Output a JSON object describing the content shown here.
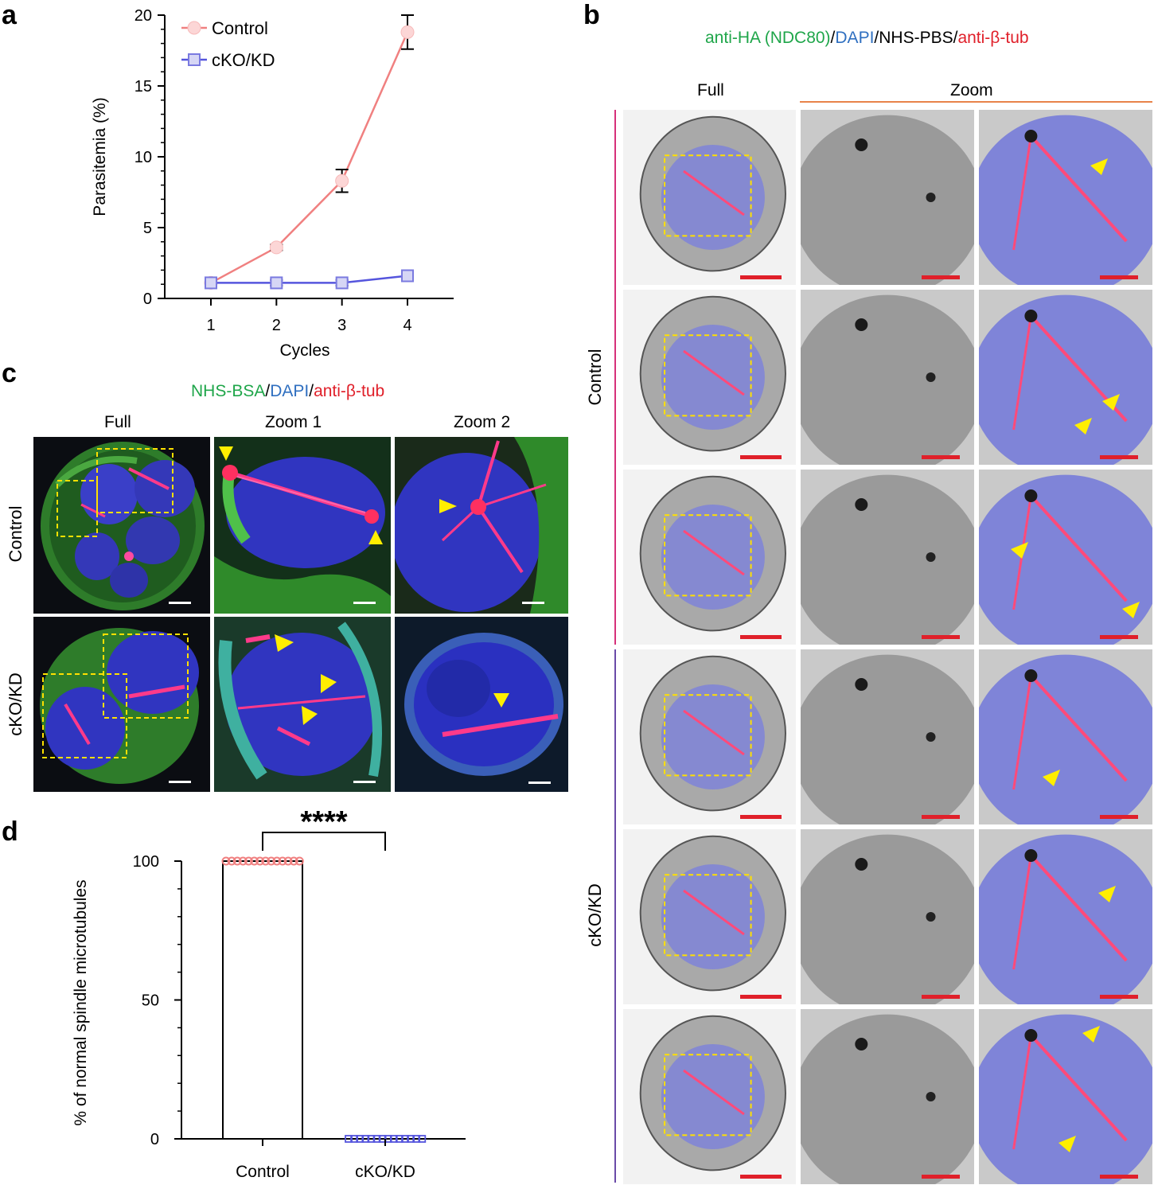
{
  "panels": {
    "a": {
      "letter": "a"
    },
    "b": {
      "letter": "b",
      "title_parts": [
        "anti-HA (NDC80)",
        "/",
        "DAPI",
        "/",
        "NHS-PBS",
        "/",
        "anti-β-tub"
      ],
      "col_full": "Full",
      "col_zoom": "Zoom",
      "row_control": "Control",
      "row_ckokd": "cKO/KD"
    },
    "c": {
      "letter": "c",
      "title_parts": [
        "NHS-BSA",
        "/",
        "DAPI",
        "/",
        "anti-β-tub"
      ],
      "col_full": "Full",
      "col_zoom1": "Zoom 1",
      "col_zoom2": "Zoom 2",
      "row_control": "Control",
      "row_ckokd": "cKO/KD"
    },
    "d": {
      "letter": "d",
      "significance": "****"
    }
  },
  "colors": {
    "control": "#f08080",
    "ckokd": "#5555dd",
    "green_label": "#1fa64a",
    "blue_label": "#2f6fc0",
    "red_label": "#e0202a",
    "arrow": "#ffee00",
    "scalebar": "#e0202a",
    "box": "#ffe000"
  },
  "chart_data": [
    {
      "type": "line",
      "panel": "a",
      "xlabel": "Cycles",
      "ylabel": "Parasitemia (%)",
      "x": [
        1,
        2,
        3,
        4
      ],
      "xticks": [
        "1",
        "2",
        "3",
        "4"
      ],
      "yticks": [
        "0",
        "5",
        "10",
        "15",
        "20"
      ],
      "ylim": [
        0,
        20
      ],
      "legend_position": "top-left",
      "series": [
        {
          "name": "Control",
          "values": [
            1.1,
            3.6,
            8.3,
            18.8
          ],
          "errors": [
            0.1,
            0.2,
            0.8,
            1.2
          ]
        },
        {
          "name": "cKO/KD",
          "values": [
            1.1,
            1.1,
            1.1,
            1.6
          ],
          "errors": [
            0.1,
            0.2,
            0.2,
            0.3
          ]
        }
      ]
    },
    {
      "type": "bar",
      "panel": "d",
      "categories": [
        "Control",
        "cKO/KD"
      ],
      "values": [
        100,
        0
      ],
      "ylabel": "% of normal spindle microtubules",
      "yticks": [
        "0",
        "50",
        "100"
      ],
      "ylim": [
        0,
        100
      ]
    }
  ]
}
